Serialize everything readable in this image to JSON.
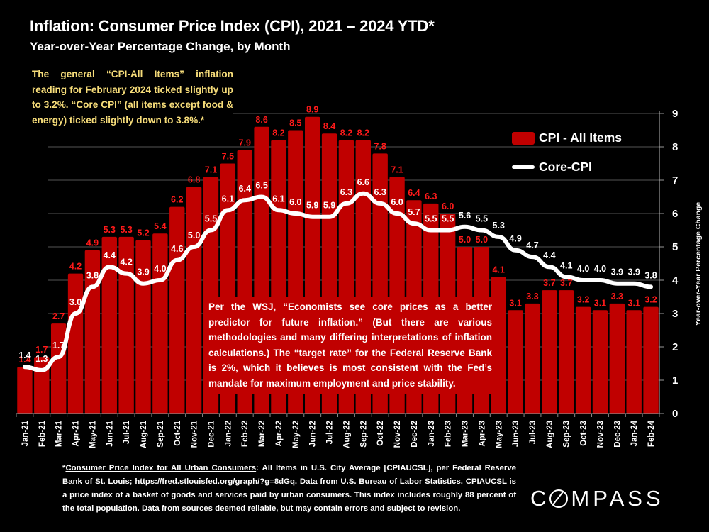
{
  "header": {
    "title": "Inflation: Consumer Price Index (CPI), 2021 – 2024 YTD*",
    "subtitle": "Year-over-Year Percentage Change, by Month"
  },
  "intro_text": "The general “CPI-All Items” inflation reading for February 2024 ticked slightly up to 3.2%. “Core CPI” (all items except food & energy) ticked slightly down to 3.8%.*",
  "note_text": "Per the WSJ, “Economists see core prices as a better predictor for future inflation.” (But there are various methodologies and many differing interpretations of inflation calculations.) The “target rate” for the Federal Reserve Bank is 2%, which it believes is most consistent with the Fed’s mandate for maximum employment and price stability.",
  "footnote": {
    "link_text": "Consumer Price Index for All Urban Consumers",
    "prefix": "*",
    "body": ": All Items in U.S. City Average [CPIAUCSL], per Federal Reserve Bank of St. Louis; https://fred.stlouisfed.org/graph/?g=8dGq. Data from U.S. Bureau of Labor Statistics. CPIAUCSL is a price index of a basket of goods and services paid by urban consumers. This index includes roughly 88 percent of the total population. Data from sources deemed reliable, but may contain errors and subject to revision."
  },
  "brand": {
    "logo_text_pre": "C",
    "logo_text_post": "MPASS"
  },
  "colors": {
    "bar": "#c00000",
    "bar_label": "#ff1a1a",
    "line": "#ffffff",
    "background": "#000000",
    "intro_text": "#f7dd7a"
  },
  "chart_data": {
    "type": "bar",
    "title": "Inflation: Consumer Price Index (CPI), 2021 – 2024 YTD*",
    "subtitle": "Year-over-Year Percentage Change, by Month",
    "xlabel": "",
    "ylabel": "Year-over-Year Percentage Change",
    "ylim": [
      0,
      9
    ],
    "yticks": [
      0,
      1,
      2,
      3,
      4,
      5,
      6,
      7,
      8,
      9
    ],
    "y_axis_side": "right",
    "grid": true,
    "legend_position": "top-right",
    "categories": [
      "Jan-21",
      "Feb-21",
      "Mar-21",
      "Apr-21",
      "May-21",
      "Jun-21",
      "Jul-21",
      "Aug-21",
      "Sep-21",
      "Oct-21",
      "Nov-21",
      "Dec-21",
      "Jan-22",
      "Feb-22",
      "Mar-22",
      "Apr-22",
      "May-22",
      "Jun-22",
      "Jul-22",
      "Aug-22",
      "Sep-22",
      "Oct-22",
      "Nov-22",
      "Dec-22",
      "Jan-23",
      "Feb-23",
      "Mar-23",
      "Apr-23",
      "May-23",
      "Jun-23",
      "Jul-23",
      "Aug-23",
      "Sep-23",
      "Oct-23",
      "Nov-23",
      "Dec-23",
      "Jan-24",
      "Feb-24"
    ],
    "series": [
      {
        "name": "CPI - All Items",
        "type": "bar",
        "values": [
          1.4,
          1.7,
          2.7,
          4.2,
          4.9,
          5.3,
          5.3,
          5.2,
          5.4,
          6.2,
          6.8,
          7.1,
          7.5,
          7.9,
          8.6,
          8.2,
          8.5,
          8.9,
          8.4,
          8.2,
          8.2,
          7.8,
          7.1,
          6.4,
          6.3,
          6.0,
          5.0,
          5.0,
          4.1,
          3.1,
          3.3,
          3.7,
          3.7,
          3.2,
          3.1,
          3.3,
          3.1,
          3.2
        ]
      },
      {
        "name": "Core-CPI",
        "type": "line",
        "values": [
          1.4,
          1.3,
          1.7,
          3.0,
          3.8,
          4.4,
          4.2,
          3.9,
          4.0,
          4.6,
          5.0,
          5.5,
          6.1,
          6.4,
          6.5,
          6.1,
          6.0,
          5.9,
          5.9,
          6.3,
          6.6,
          6.3,
          6.0,
          5.7,
          5.5,
          5.5,
          5.6,
          5.5,
          5.3,
          4.9,
          4.7,
          4.4,
          4.1,
          4.0,
          4.0,
          3.9,
          3.9,
          3.8
        ]
      }
    ],
    "legend": [
      "CPI - All Items",
      "Core-CPI"
    ]
  }
}
